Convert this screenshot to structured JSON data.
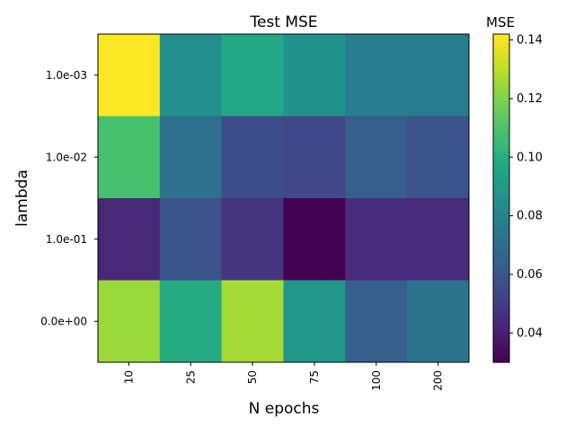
{
  "chart_data": {
    "type": "heatmap",
    "title": "Test MSE",
    "xlabel": "N epochs",
    "ylabel": "lambda",
    "colorbar_label": "MSE",
    "colormap": "viridis",
    "x_categories": [
      "10",
      "25",
      "50",
      "75",
      "100",
      "200"
    ],
    "y_categories": [
      "1.0e-03",
      "1.0e-02",
      "1.0e-01",
      "0.0e+00"
    ],
    "values": [
      [
        0.142,
        0.085,
        0.096,
        0.087,
        0.077,
        0.077
      ],
      [
        0.109,
        0.071,
        0.056,
        0.054,
        0.063,
        0.058
      ],
      [
        0.043,
        0.058,
        0.047,
        0.03,
        0.044,
        0.044
      ],
      [
        0.125,
        0.099,
        0.127,
        0.089,
        0.064,
        0.073
      ]
    ],
    "color_range": [
      0.03,
      0.142
    ],
    "colorbar_ticks": [
      "0.04",
      "0.06",
      "0.08",
      "0.10",
      "0.12",
      "0.14"
    ],
    "x_tick_rotation": "vertical"
  }
}
